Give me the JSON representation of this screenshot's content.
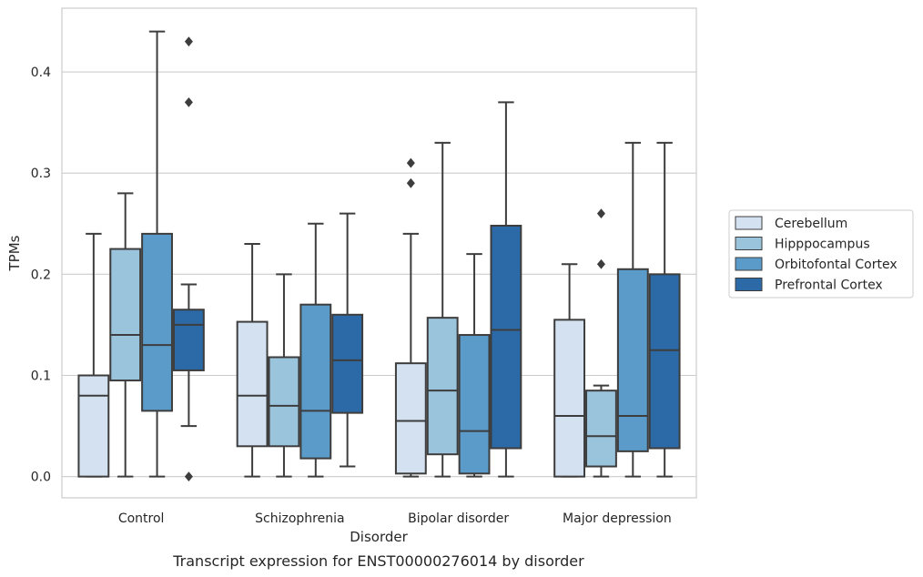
{
  "chart_data": {
    "type": "box",
    "title": "",
    "caption": "Transcript expression for ENST00000276014 by disorder",
    "xlabel": "Disorder",
    "ylabel": "TPMs",
    "ylim": [
      -0.021,
      0.463
    ],
    "yticks": [
      "0.0",
      "0.1",
      "0.2",
      "0.3",
      "0.4"
    ],
    "grid": "horizontal",
    "legend_position": "right",
    "categories": [
      "Control",
      "Schizophrenia",
      "Bipolar disorder",
      "Major depression"
    ],
    "series": [
      {
        "name": "Cerebellum",
        "color": "#d3e1f0",
        "boxes": [
          {
            "min": 0.0,
            "q1": 0.0,
            "median": 0.08,
            "q3": 0.1,
            "max": 0.24,
            "outliers": []
          },
          {
            "min": 0.0,
            "q1": 0.03,
            "median": 0.08,
            "q3": 0.153,
            "max": 0.23,
            "outliers": []
          },
          {
            "min": 0.0,
            "q1": 0.003,
            "median": 0.055,
            "q3": 0.112,
            "max": 0.24,
            "outliers": [
              0.29,
              0.31
            ]
          },
          {
            "min": 0.0,
            "q1": 0.0,
            "median": 0.06,
            "q3": 0.155,
            "max": 0.21,
            "outliers": []
          }
        ]
      },
      {
        "name": "Hipppocampus",
        "color": "#9ac3dc",
        "boxes": [
          {
            "min": 0.0,
            "q1": 0.095,
            "median": 0.14,
            "q3": 0.225,
            "max": 0.28,
            "outliers": []
          },
          {
            "min": 0.0,
            "q1": 0.03,
            "median": 0.07,
            "q3": 0.118,
            "max": 0.2,
            "outliers": []
          },
          {
            "min": 0.0,
            "q1": 0.022,
            "median": 0.085,
            "q3": 0.157,
            "max": 0.33,
            "outliers": []
          },
          {
            "min": 0.0,
            "q1": 0.01,
            "median": 0.04,
            "q3": 0.085,
            "max": 0.09,
            "outliers": [
              0.21,
              0.26
            ]
          }
        ]
      },
      {
        "name": "Orbitofontal Cortex",
        "color": "#5a9bc9",
        "boxes": [
          {
            "min": 0.0,
            "q1": 0.065,
            "median": 0.13,
            "q3": 0.24,
            "max": 0.44,
            "outliers": []
          },
          {
            "min": 0.0,
            "q1": 0.018,
            "median": 0.065,
            "q3": 0.17,
            "max": 0.25,
            "outliers": []
          },
          {
            "min": 0.0,
            "q1": 0.003,
            "median": 0.045,
            "q3": 0.14,
            "max": 0.22,
            "outliers": []
          },
          {
            "min": 0.0,
            "q1": 0.025,
            "median": 0.06,
            "q3": 0.205,
            "max": 0.33,
            "outliers": []
          }
        ]
      },
      {
        "name": "Prefrontal Cortex",
        "color": "#2c6aa7",
        "boxes": [
          {
            "min": 0.05,
            "q1": 0.105,
            "median": 0.15,
            "q3": 0.165,
            "max": 0.19,
            "outliers": [
              0.0,
              0.37,
              0.43
            ]
          },
          {
            "min": 0.01,
            "q1": 0.063,
            "median": 0.115,
            "q3": 0.16,
            "max": 0.26,
            "outliers": []
          },
          {
            "min": 0.0,
            "q1": 0.028,
            "median": 0.145,
            "q3": 0.248,
            "max": 0.37,
            "outliers": []
          },
          {
            "min": 0.0,
            "q1": 0.028,
            "median": 0.125,
            "q3": 0.2,
            "max": 0.33,
            "outliers": []
          }
        ]
      }
    ]
  }
}
